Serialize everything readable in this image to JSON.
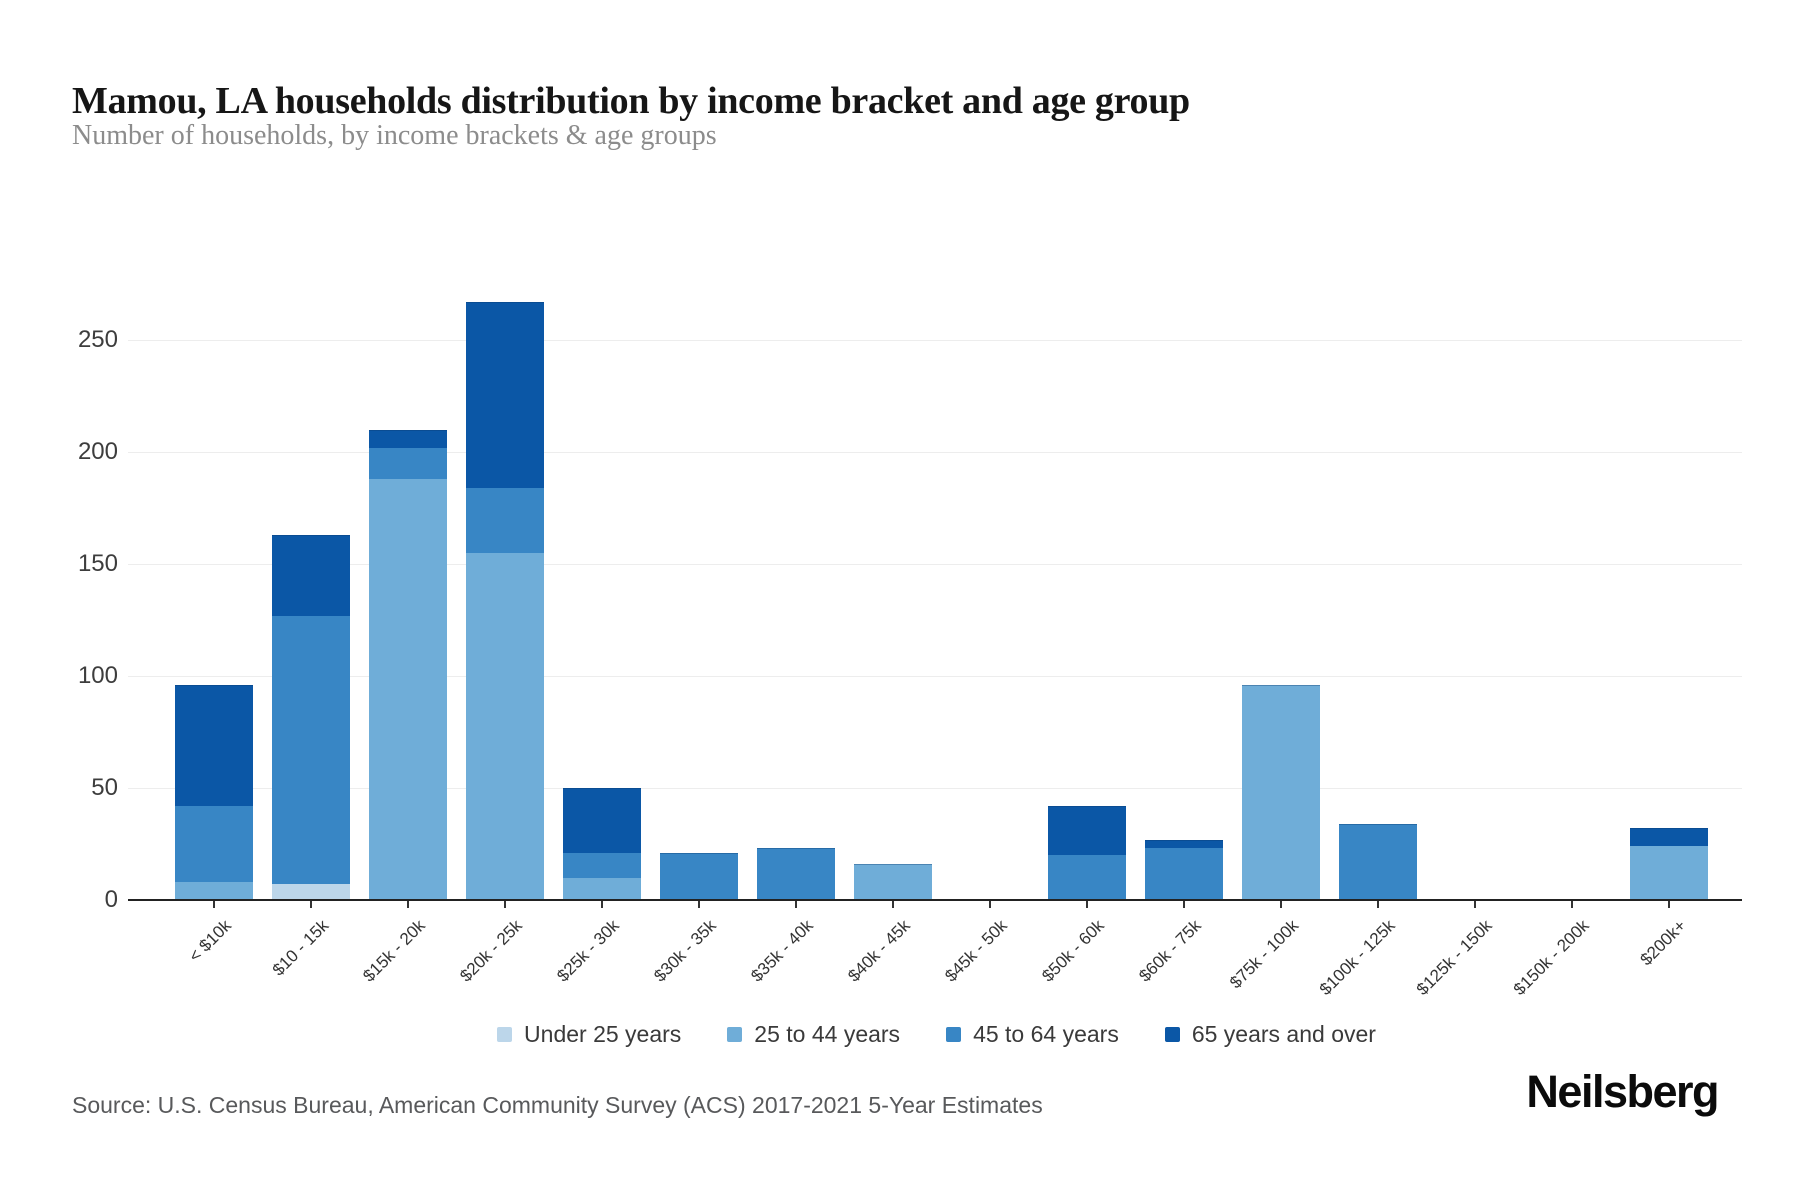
{
  "header": {
    "title": "Mamou, LA households distribution by income bracket and age group",
    "subtitle": "Number of households, by income brackets & age groups"
  },
  "footer": {
    "source": "Source: U.S. Census Bureau, American Community Survey (ACS) 2017-2021 5-Year Estimates",
    "brand": "Neilsberg"
  },
  "colors": {
    "under_25": "#bcd6ea",
    "age_25_44": "#6fadd8",
    "age_45_64": "#3886c5",
    "age_65_plus": "#0b57a6",
    "gridline": "#ededed",
    "axis": "#222222"
  },
  "chart_data": {
    "type": "bar",
    "stacked": true,
    "title": "Mamou, LA households distribution by income bracket and age group",
    "subtitle": "Number of households, by income brackets & age groups",
    "xlabel": "",
    "ylabel": "",
    "categories": [
      "< $10k",
      "$10 - 15k",
      "$15k - 20k",
      "$20k - 25k",
      "$25k - 30k",
      "$30k - 35k",
      "$35k - 40k",
      "$40k - 45k",
      "$45k - 50k",
      "$50k - 60k",
      "$60k - 75k",
      "$75k - 100k",
      "$100k - 125k",
      "$125k - 150k",
      "$150k - 200k",
      "$200k+"
    ],
    "series": [
      {
        "name": "Under 25 years",
        "color": "#bcd6ea",
        "values": [
          0,
          7,
          0,
          0,
          0,
          0,
          0,
          0,
          0,
          0,
          0,
          0,
          0,
          0,
          0,
          0
        ]
      },
      {
        "name": "25 to 44 years",
        "color": "#6fadd8",
        "values": [
          8,
          0,
          188,
          155,
          10,
          0,
          0,
          16,
          0,
          0,
          0,
          96,
          0,
          0,
          0,
          24
        ]
      },
      {
        "name": "45 to 64 years",
        "color": "#3886c5",
        "values": [
          34,
          120,
          14,
          29,
          11,
          21,
          23,
          0,
          0,
          20,
          23,
          0,
          34,
          0,
          0,
          0
        ]
      },
      {
        "name": "65 years and over",
        "color": "#0b57a6",
        "values": [
          54,
          36,
          8,
          83,
          29,
          0,
          0,
          0,
          0,
          22,
          4,
          0,
          0,
          0,
          0,
          8
        ]
      }
    ],
    "totals": [
      96,
      163,
      210,
      267,
      50,
      21,
      23,
      16,
      0,
      42,
      27,
      96,
      34,
      0,
      0,
      32
    ],
    "yticks": [
      0,
      50,
      100,
      150,
      200,
      250
    ],
    "ylim": [
      0,
      280
    ],
    "grid": true,
    "legend_position": "bottom"
  }
}
